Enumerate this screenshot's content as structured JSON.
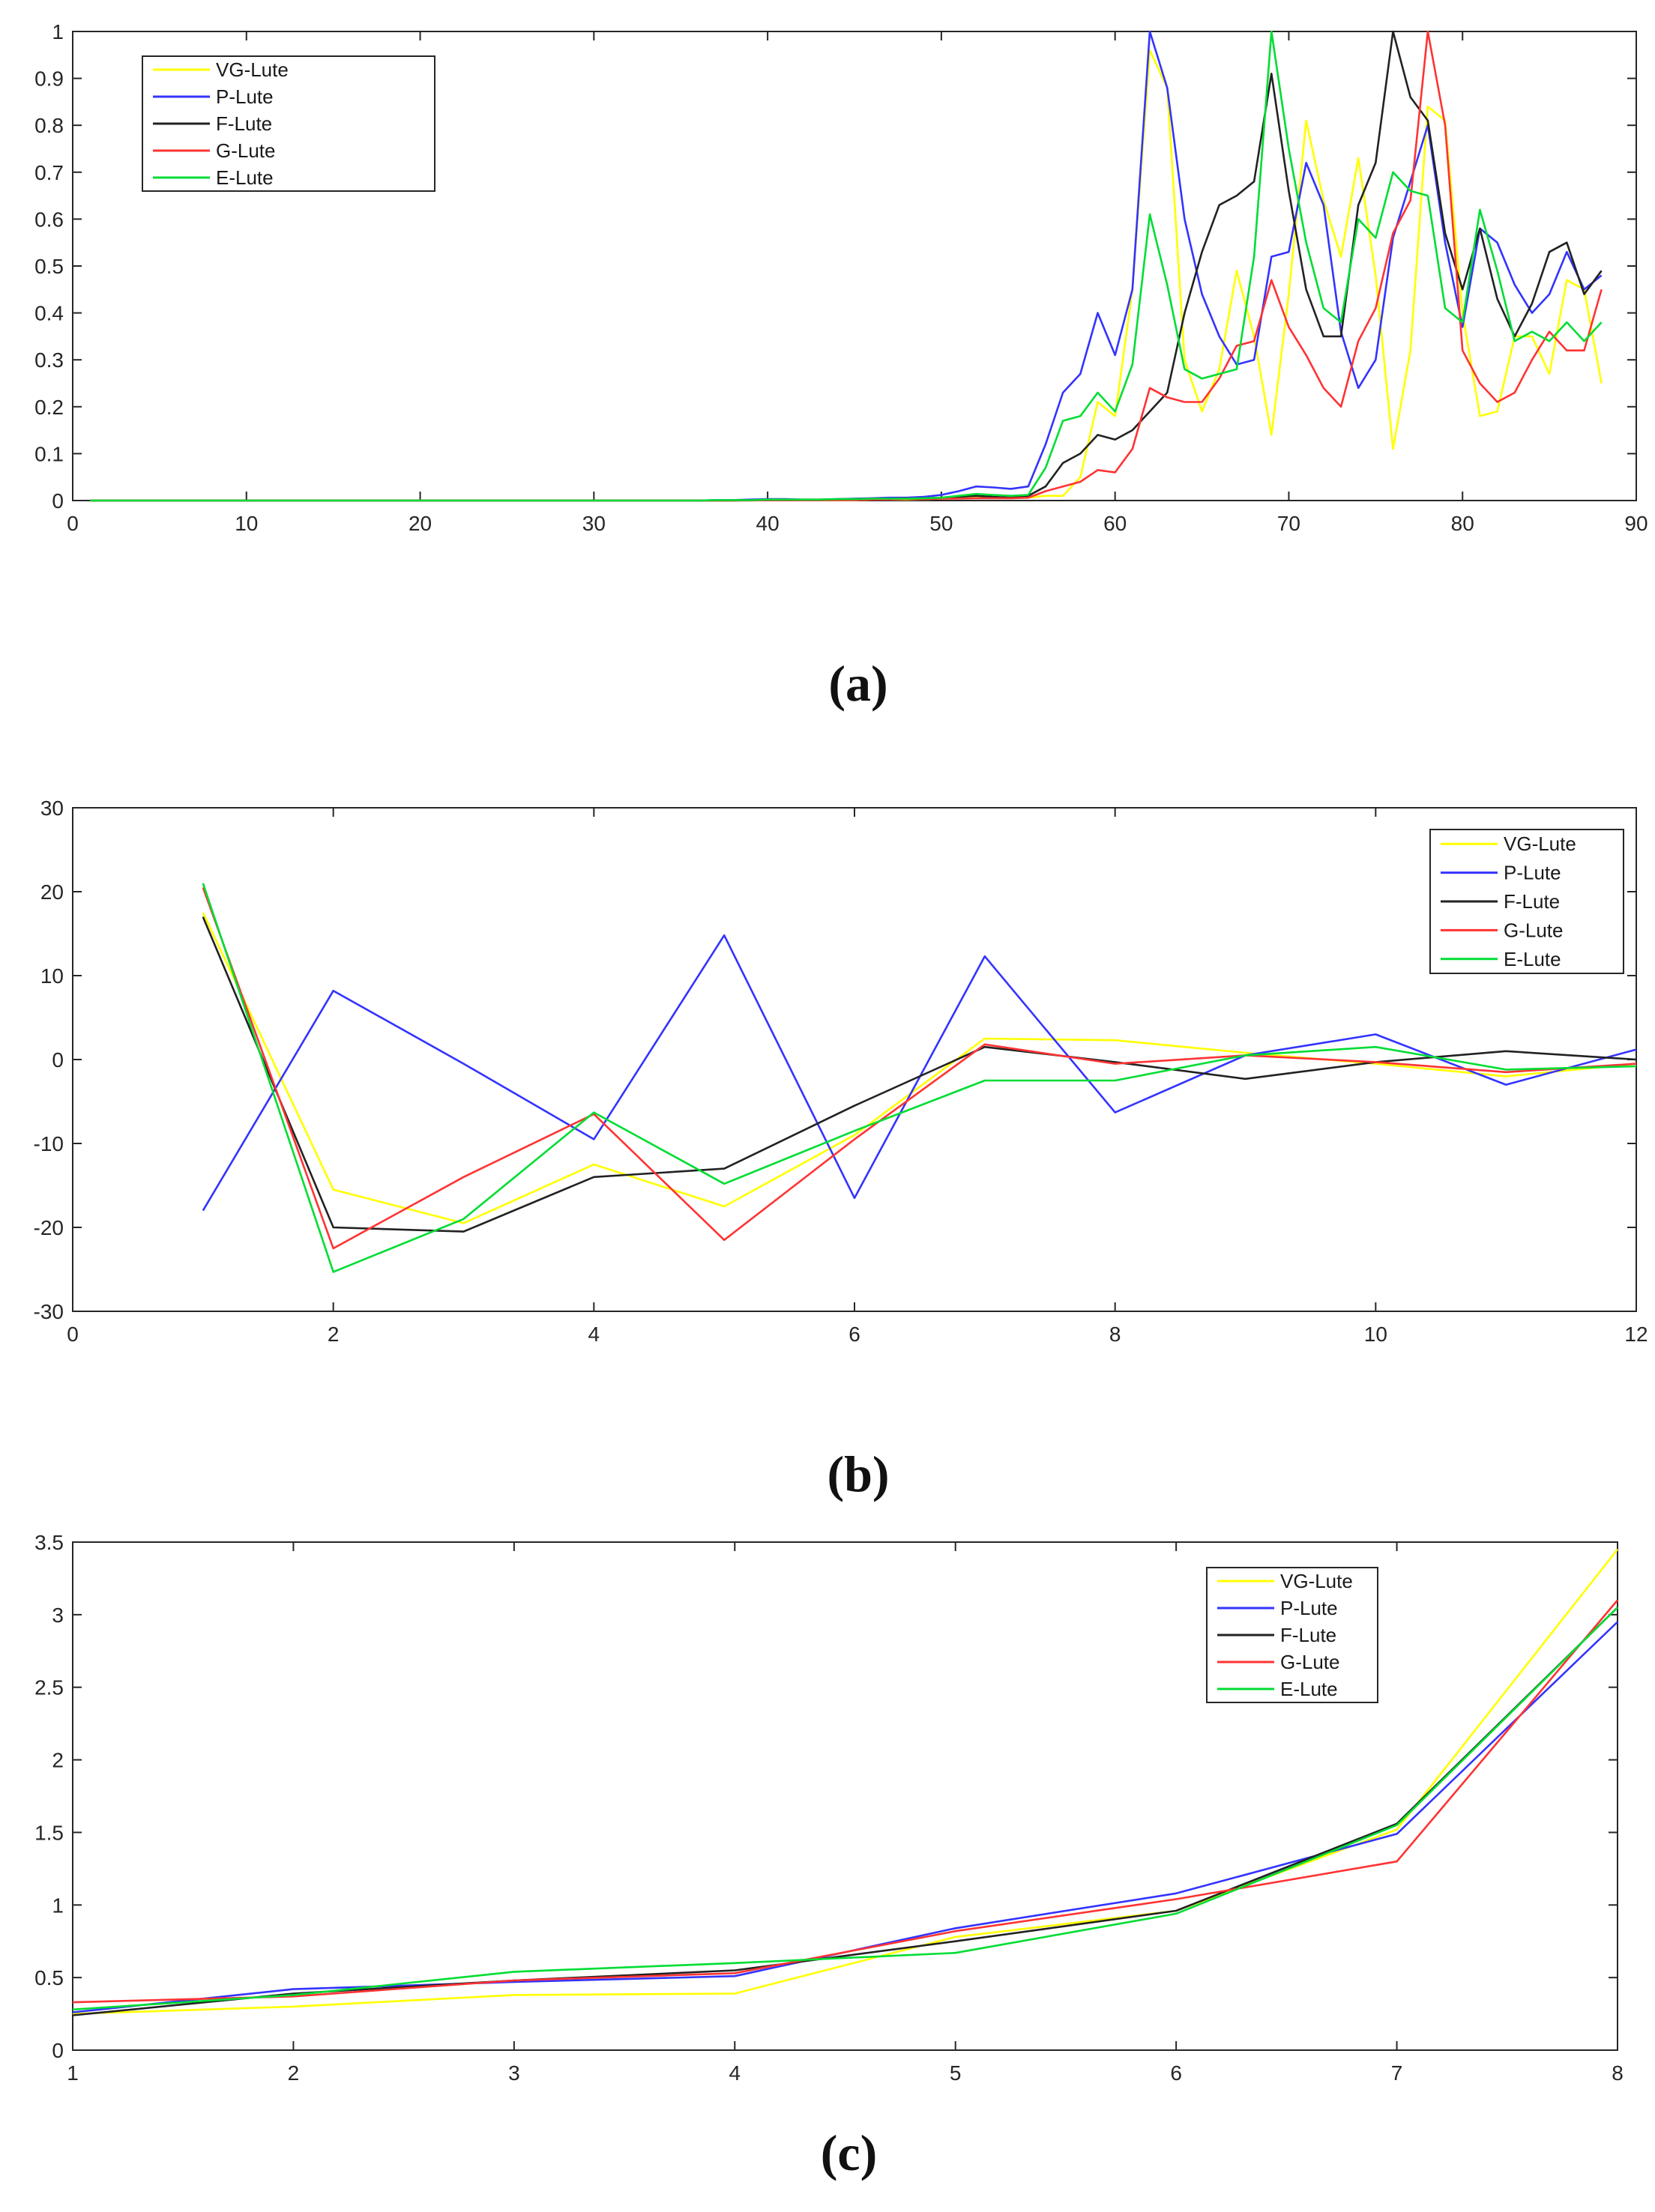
{
  "chart_data": [
    {
      "type": "line",
      "caption": "(a)",
      "xlim": [
        0,
        90
      ],
      "ylim": [
        0,
        1
      ],
      "xticks": [
        "0",
        "10",
        "20",
        "30",
        "40",
        "50",
        "60",
        "70",
        "80",
        "90"
      ],
      "yticks": [
        "0",
        "0.1",
        "0.2",
        "0.3",
        "0.4",
        "0.5",
        "0.6",
        "0.7",
        "0.8",
        "0.9",
        "1"
      ],
      "x": [
        1,
        2,
        3,
        4,
        5,
        6,
        7,
        8,
        9,
        10,
        11,
        12,
        13,
        14,
        15,
        16,
        17,
        18,
        19,
        20,
        21,
        22,
        23,
        24,
        25,
        26,
        27,
        28,
        29,
        30,
        31,
        32,
        33,
        34,
        35,
        36,
        37,
        38,
        39,
        40,
        41,
        42,
        43,
        44,
        45,
        46,
        47,
        48,
        49,
        50,
        51,
        52,
        53,
        54,
        55,
        56,
        57,
        58,
        59,
        60,
        61,
        62,
        63,
        64,
        65,
        66,
        67,
        68,
        69,
        70,
        71,
        72,
        73,
        74,
        75,
        76,
        77,
        78,
        79,
        80,
        81,
        82,
        83,
        84,
        85,
        86,
        87,
        88
      ],
      "legend_position": "top-left",
      "series": [
        {
          "name": "VG-Lute",
          "color": "#ffff00",
          "values": [
            0,
            0,
            0,
            0,
            0,
            0,
            0,
            0,
            0,
            0,
            0,
            0,
            0,
            0,
            0,
            0,
            0,
            0,
            0,
            0,
            0,
            0,
            0,
            0,
            0,
            0,
            0,
            0,
            0,
            0,
            0,
            0,
            0,
            0,
            0,
            0,
            0,
            0,
            0.001,
            0.001,
            0.001,
            0.001,
            0.001,
            0.001,
            0.001,
            0.002,
            0.002,
            0.002,
            0.003,
            0.004,
            0.005,
            0.006,
            0.006,
            0.005,
            0.006,
            0.01,
            0.01,
            0.05,
            0.21,
            0.18,
            0.45,
            0.96,
            0.88,
            0.3,
            0.19,
            0.28,
            0.49,
            0.35,
            0.14,
            0.44,
            0.81,
            0.64,
            0.52,
            0.73,
            0.48,
            0.11,
            0.32,
            0.84,
            0.81,
            0.4,
            0.18,
            0.19,
            0.35,
            0.35,
            0.27,
            0.47,
            0.45,
            0.25
          ]
        },
        {
          "name": "P-Lute",
          "color": "#3333ff",
          "values": [
            0,
            0,
            0,
            0,
            0,
            0,
            0,
            0,
            0,
            0,
            0,
            0,
            0,
            0,
            0,
            0,
            0,
            0,
            0,
            0,
            0,
            0,
            0,
            0,
            0,
            0,
            0,
            0,
            0,
            0,
            0,
            0,
            0,
            0,
            0,
            0,
            0.001,
            0.001,
            0.002,
            0.003,
            0.003,
            0.002,
            0.002,
            0.003,
            0.004,
            0.005,
            0.006,
            0.006,
            0.008,
            0.012,
            0.02,
            0.03,
            0.028,
            0.025,
            0.03,
            0.12,
            0.23,
            0.27,
            0.4,
            0.31,
            0.45,
            1.0,
            0.88,
            0.6,
            0.44,
            0.35,
            0.29,
            0.3,
            0.52,
            0.53,
            0.72,
            0.63,
            0.36,
            0.24,
            0.3,
            0.56,
            0.68,
            0.8,
            0.55,
            0.37,
            0.58,
            0.55,
            0.46,
            0.4,
            0.44,
            0.53,
            0.45,
            0.48
          ]
        },
        {
          "name": "F-Lute",
          "color": "#222222",
          "values": [
            0,
            0,
            0,
            0,
            0,
            0,
            0,
            0,
            0,
            0,
            0,
            0,
            0,
            0,
            0,
            0,
            0,
            0,
            0,
            0,
            0,
            0,
            0,
            0,
            0,
            0,
            0,
            0,
            0,
            0,
            0,
            0,
            0,
            0,
            0,
            0,
            0,
            0,
            0.001,
            0.001,
            0.001,
            0.001,
            0.001,
            0.002,
            0.003,
            0.003,
            0.003,
            0.004,
            0.005,
            0.006,
            0.008,
            0.01,
            0.008,
            0.006,
            0.01,
            0.03,
            0.08,
            0.1,
            0.14,
            0.13,
            0.15,
            0.19,
            0.23,
            0.4,
            0.53,
            0.63,
            0.65,
            0.68,
            0.91,
            0.66,
            0.45,
            0.35,
            0.35,
            0.63,
            0.72,
            1.0,
            0.86,
            0.81,
            0.57,
            0.45,
            0.58,
            0.43,
            0.35,
            0.42,
            0.53,
            0.55,
            0.44,
            0.49
          ]
        },
        {
          "name": "G-Lute",
          "color": "#ff3333",
          "values": [
            0,
            0,
            0,
            0,
            0,
            0,
            0,
            0,
            0,
            0,
            0,
            0,
            0,
            0,
            0,
            0,
            0,
            0,
            0,
            0,
            0,
            0,
            0,
            0,
            0,
            0,
            0,
            0,
            0,
            0,
            0,
            0,
            0,
            0,
            0,
            0,
            0,
            0,
            0,
            0.001,
            0.001,
            0.001,
            0.001,
            0.001,
            0.001,
            0.002,
            0.002,
            0.003,
            0.003,
            0.004,
            0.004,
            0.005,
            0.005,
            0.005,
            0.006,
            0.02,
            0.03,
            0.04,
            0.065,
            0.06,
            0.11,
            0.24,
            0.22,
            0.21,
            0.21,
            0.26,
            0.33,
            0.34,
            0.47,
            0.37,
            0.31,
            0.24,
            0.2,
            0.34,
            0.41,
            0.57,
            0.64,
            1.0,
            0.8,
            0.32,
            0.25,
            0.21,
            0.23,
            0.3,
            0.36,
            0.32,
            0.32,
            0.45
          ]
        },
        {
          "name": "E-Lute",
          "color": "#00dd33",
          "values": [
            0,
            0,
            0,
            0,
            0,
            0,
            0,
            0,
            0,
            0,
            0,
            0,
            0,
            0,
            0,
            0,
            0,
            0,
            0,
            0,
            0,
            0,
            0,
            0,
            0,
            0,
            0,
            0,
            0,
            0,
            0,
            0,
            0,
            0,
            0,
            0,
            0.001,
            0.001,
            0.001,
            0.002,
            0.002,
            0.002,
            0.002,
            0.003,
            0.003,
            0.004,
            0.004,
            0.004,
            0.005,
            0.006,
            0.01,
            0.014,
            0.012,
            0.01,
            0.012,
            0.07,
            0.17,
            0.18,
            0.23,
            0.19,
            0.29,
            0.61,
            0.46,
            0.28,
            0.26,
            0.27,
            0.28,
            0.52,
            1.0,
            0.75,
            0.55,
            0.41,
            0.38,
            0.6,
            0.56,
            0.7,
            0.66,
            0.65,
            0.41,
            0.38,
            0.62,
            0.49,
            0.34,
            0.36,
            0.34,
            0.38,
            0.34,
            0.38
          ]
        }
      ]
    },
    {
      "type": "line",
      "caption": "(b)",
      "xlim": [
        0,
        12
      ],
      "ylim": [
        -30,
        30
      ],
      "xticks": [
        "0",
        "2",
        "4",
        "6",
        "8",
        "10",
        "12"
      ],
      "yticks": [
        "-30",
        "-20",
        "-10",
        "0",
        "10",
        "20",
        "30"
      ],
      "x": [
        1,
        2,
        3,
        4,
        5,
        6,
        7,
        8,
        9,
        10,
        11,
        12
      ],
      "legend_position": "top-right",
      "series": [
        {
          "name": "VG-Lute",
          "color": "#ffff00",
          "values": [
            17.5,
            -15.5,
            -19.5,
            -12.5,
            -17.5,
            -9,
            2.5,
            2.3,
            0.8,
            -0.5,
            -2,
            -0.5
          ]
        },
        {
          "name": "P-Lute",
          "color": "#3333ff",
          "values": [
            -18,
            8.2,
            -0.5,
            -9.5,
            14.8,
            -16.5,
            12.3,
            -6.3,
            0.5,
            3,
            -3,
            1.2
          ]
        },
        {
          "name": "F-Lute",
          "color": "#222222",
          "values": [
            17,
            -20,
            -20.5,
            -14,
            -13,
            -5.5,
            1.5,
            -0.3,
            -2.3,
            -0.3,
            1,
            0
          ]
        },
        {
          "name": "G-Lute",
          "color": "#ff3333",
          "values": [
            20.5,
            -22.5,
            -14,
            -6.5,
            -21.5,
            -9.5,
            1.8,
            -0.5,
            0.5,
            -0.3,
            -1.5,
            -0.5
          ]
        },
        {
          "name": "E-Lute",
          "color": "#00dd33",
          "values": [
            21,
            -25.3,
            -19,
            -6.3,
            -14.8,
            -8.5,
            -2.5,
            -2.5,
            0.5,
            1.5,
            -1.2,
            -0.8
          ]
        }
      ]
    },
    {
      "type": "line",
      "caption": "(c)",
      "xlim": [
        1,
        8
      ],
      "ylim": [
        0,
        3.5
      ],
      "xticks": [
        "1",
        "2",
        "3",
        "4",
        "5",
        "6",
        "7",
        "8"
      ],
      "yticks": [
        "0",
        "0.5",
        "1",
        "1.5",
        "2",
        "2.5",
        "3",
        "3.5"
      ],
      "x": [
        1,
        2,
        3,
        4,
        5,
        6,
        7,
        8
      ],
      "legend_position": "top-right",
      "series": [
        {
          "name": "VG-Lute",
          "color": "#ffff00",
          "values": [
            0.25,
            0.3,
            0.38,
            0.39,
            0.78,
            0.96,
            1.52,
            3.45
          ]
        },
        {
          "name": "P-Lute",
          "color": "#3333ff",
          "values": [
            0.26,
            0.42,
            0.47,
            0.51,
            0.84,
            1.08,
            1.49,
            2.95
          ]
        },
        {
          "name": "F-Lute",
          "color": "#222222",
          "values": [
            0.24,
            0.39,
            0.48,
            0.55,
            0.75,
            0.96,
            1.56,
            3.05
          ]
        },
        {
          "name": "G-Lute",
          "color": "#ff3333",
          "values": [
            0.33,
            0.37,
            0.48,
            0.53,
            0.82,
            1.04,
            1.3,
            3.1
          ]
        },
        {
          "name": "E-Lute",
          "color": "#00dd33",
          "values": [
            0.28,
            0.38,
            0.54,
            0.6,
            0.67,
            0.94,
            1.55,
            3.05
          ]
        }
      ]
    }
  ]
}
